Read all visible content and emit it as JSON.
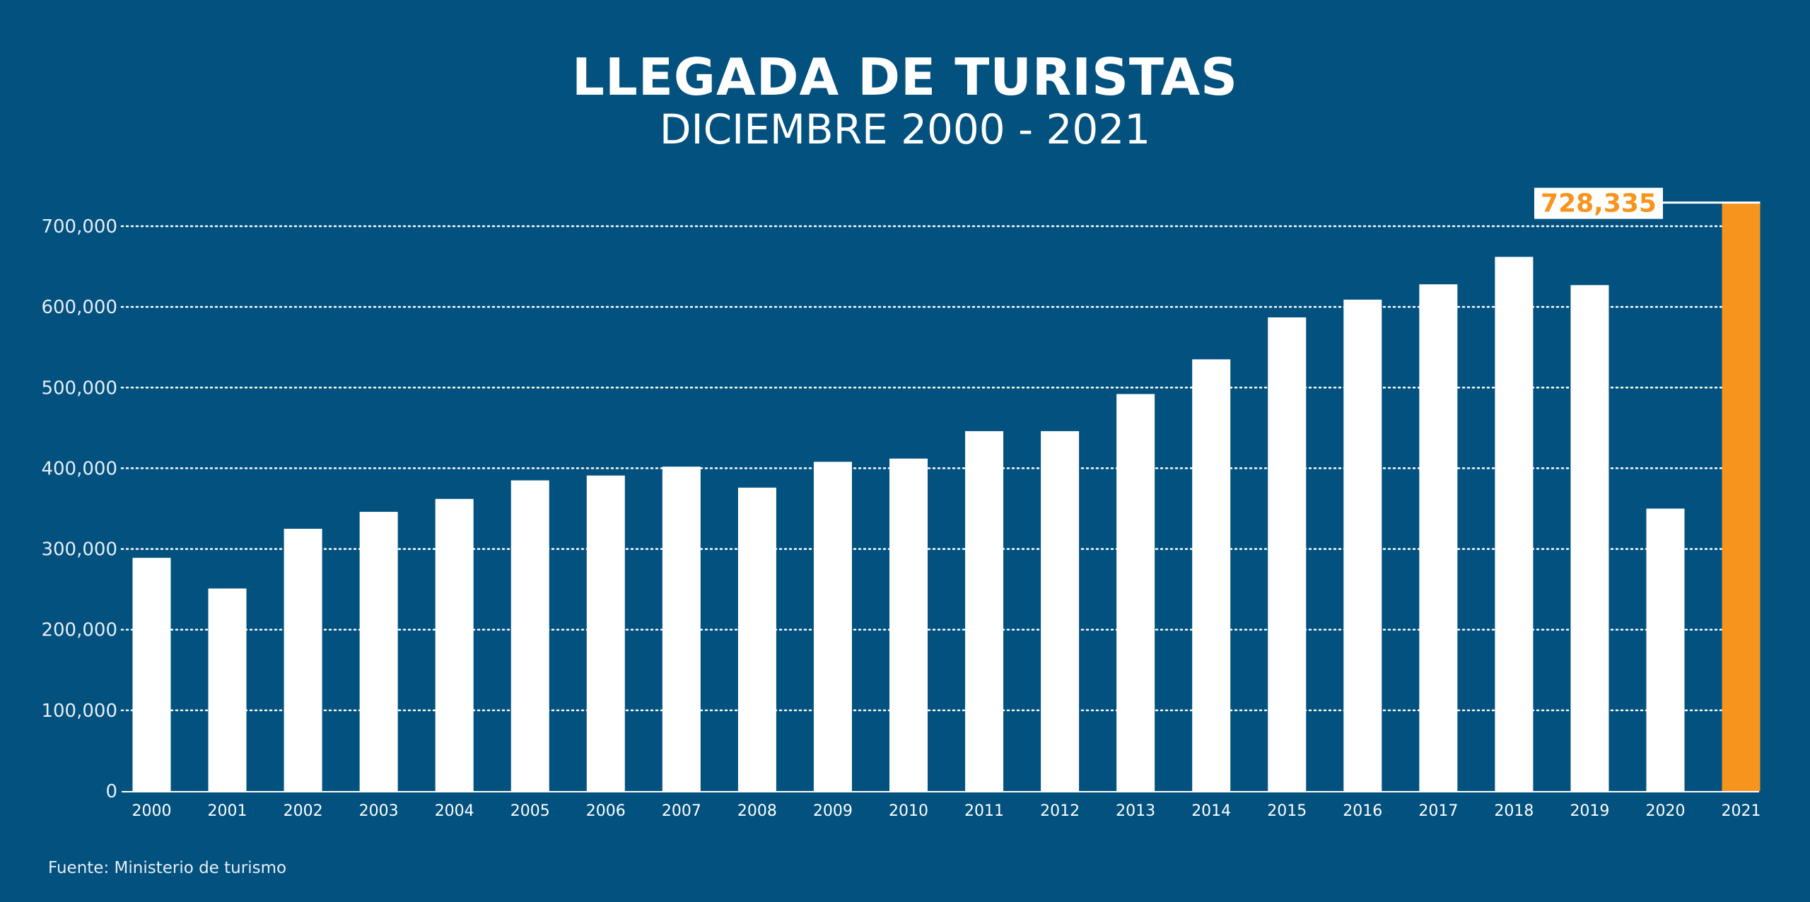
{
  "colors": {
    "background": "#02517f",
    "bar": "#ffffff",
    "highlight": "#f7941d",
    "text": "#ffffff"
  },
  "footer": {
    "source": "Fuente: Ministerio de turismo"
  },
  "chart_data": {
    "type": "bar",
    "title": "LLEGADA DE TURISTAS",
    "subtitle": "DICIEMBRE 2000 - 2021",
    "categories": [
      "2000",
      "2001",
      "2002",
      "2003",
      "2004",
      "2005",
      "2006",
      "2007",
      "2008",
      "2009",
      "2010",
      "2011",
      "2012",
      "2013",
      "2014",
      "2015",
      "2016",
      "2017",
      "2018",
      "2019",
      "2020",
      "2021"
    ],
    "values": [
      289000,
      251000,
      325000,
      346000,
      362000,
      385000,
      391000,
      402000,
      376000,
      408000,
      412000,
      446000,
      446000,
      492000,
      535000,
      587000,
      609000,
      628000,
      662000,
      627000,
      350000,
      728335
    ],
    "yticks": [
      "0",
      "100,000",
      "200,000",
      "300,000",
      "400,000",
      "500,000",
      "600,000",
      "700,000"
    ],
    "ylim": [
      0,
      700000
    ],
    "grid": true,
    "highlight": {
      "category": "2021",
      "label": "728,335"
    }
  }
}
